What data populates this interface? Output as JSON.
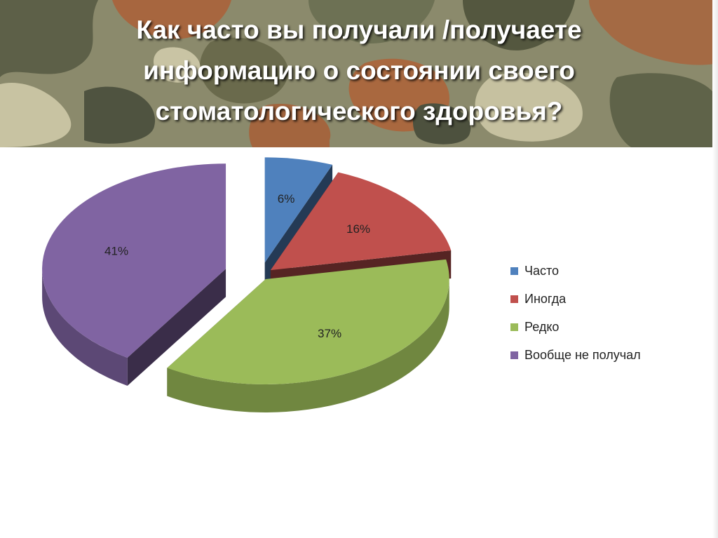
{
  "slide": {
    "title_lines": [
      "Как часто вы получали /получаете",
      "информацию о состоянии своего",
      "стоматологического здоровья?"
    ]
  },
  "chart_data": {
    "type": "pie",
    "title": "",
    "legend_position": "right",
    "categories": [
      "Часто",
      "Иногда",
      "Редко",
      "Вообще не получал"
    ],
    "values": [
      6,
      16,
      37,
      41
    ],
    "labels": [
      "6%",
      "16%",
      "37%",
      "41%"
    ],
    "colors": [
      "#4f81bd",
      "#c0504d",
      "#9bbb59",
      "#8064a2"
    ],
    "exploded": true,
    "three_d": true
  }
}
